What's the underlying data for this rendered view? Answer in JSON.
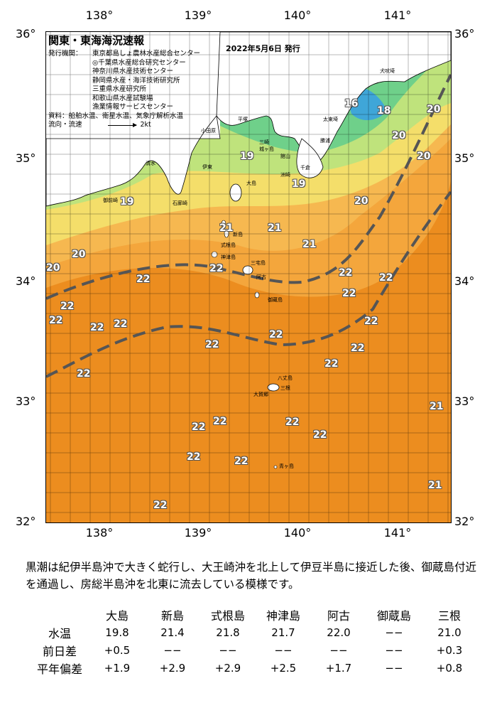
{
  "map": {
    "title": "関東・東海海況速報",
    "date": "2022年5月6日 発行",
    "publisher_label": "発行機関：",
    "publishers": [
      "東京都島しょ農林水産総合センター",
      "◎千葉県水産総合研究センター",
      "神奈川県水産技術センター",
      "静岡県水産・海洋技術研究所",
      "三重県水産研究所",
      "和歌山県水産試験場",
      "漁業情報サービスセンター"
    ],
    "sources_label": "資料：",
    "sources": "船舶水温、衛星水温、気象庁解析水温",
    "flow_label": "流向・流速",
    "flow_scale": "2kt",
    "lon_ticks": [
      "138°",
      "139°",
      "140°",
      "141°"
    ],
    "lat_ticks": [
      "36°",
      "35°",
      "34°",
      "33°",
      "32°"
    ],
    "temperature_labels": [
      "16",
      "18",
      "20",
      "20",
      "20",
      "19",
      "19",
      "19",
      "20",
      "20",
      "20",
      "21",
      "21",
      "21",
      "22",
      "22",
      "22",
      "22",
      "22",
      "22",
      "22",
      "22",
      "22",
      "22",
      "22",
      "22",
      "22",
      "22",
      "22",
      "22",
      "22",
      "22",
      "22",
      "22",
      "21",
      "21",
      "22",
      "22"
    ],
    "place_names": [
      "犬吠埼",
      "太東埼",
      "勝浦",
      "洲崎",
      "千倉",
      "館山",
      "平塚",
      "城ヶ島",
      "小田原",
      "三崎",
      "大島",
      "御前崎",
      "石廊崎",
      "新島",
      "式根島",
      "神津島",
      "三宅島",
      "阿古",
      "御蔵島",
      "八丈島",
      "大賀郷",
      "三根",
      "青ヶ島",
      "伊東",
      "清水"
    ],
    "colors": {
      "coast_green": "#6fd08a",
      "light_green": "#b8e27a",
      "yellow": "#f4de6a",
      "light_orange": "#f5b447",
      "orange": "#f19a2a",
      "deep_orange": "#ec8d1f",
      "kuroshio_line": "#555555"
    }
  },
  "description": "黒潮は紀伊半島沖で大きく蛇行し、大王崎沖を北上して伊豆半島に接近した後、御蔵島付近を通過し、房総半島沖を北東に流去している模様です。",
  "stats": {
    "columns": [
      "大島",
      "新島",
      "式根島",
      "神津島",
      "阿古",
      "御蔵島",
      "三根"
    ],
    "rows": [
      {
        "label": "水温",
        "values": [
          "19.8",
          "21.4",
          "21.8",
          "21.7",
          "22.0",
          "−−",
          "21.0"
        ]
      },
      {
        "label": "前日差",
        "values": [
          "+0.5",
          "−−",
          "−−",
          "−−",
          "−−",
          "−−",
          "+0.3"
        ]
      },
      {
        "label": "平年偏差",
        "values": [
          "+1.9",
          "+2.9",
          "+2.9",
          "+2.5",
          "+1.7",
          "−−",
          "+0.8"
        ]
      }
    ]
  }
}
